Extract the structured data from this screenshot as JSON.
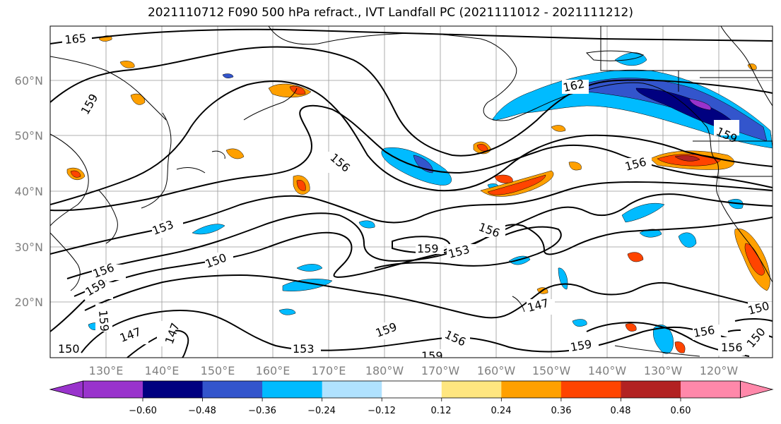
{
  "title": "2021110712 F090 500 hPa refract., IVT Landfall PC (2021111012 - 2021111212)",
  "axes": {
    "lat_labels": [
      "60°N",
      "50°N",
      "40°N",
      "30°N",
      "20°N"
    ],
    "lon_labels": [
      "130°E",
      "140°E",
      "150°E",
      "160°E",
      "170°E",
      "180°W",
      "170°W",
      "160°W",
      "150°W",
      "140°W",
      "130°W",
      "120°W"
    ]
  },
  "contour_labels": [
    "165",
    "162",
    "159",
    "159",
    "156",
    "156",
    "156",
    "156",
    "153",
    "153",
    "153",
    "150",
    "150",
    "150",
    "147",
    "147",
    "147",
    "159",
    "159",
    "159",
    "156",
    "156",
    "159",
    "159",
    "159",
    "156",
    "150"
  ],
  "colorbar": {
    "tick_labels": [
      "−0.60",
      "−0.48",
      "−0.36",
      "−0.24",
      "−0.12",
      "0.12",
      "0.24",
      "0.36",
      "0.48",
      "0.60"
    ],
    "colors": [
      "#9933cc",
      "#000080",
      "#3355cc",
      "#00bbff",
      "#b0e2ff",
      "#ffffff",
      "#ffe680",
      "#ffa000",
      "#ff4400",
      "#b22222",
      "#ff88aa"
    ]
  }
}
